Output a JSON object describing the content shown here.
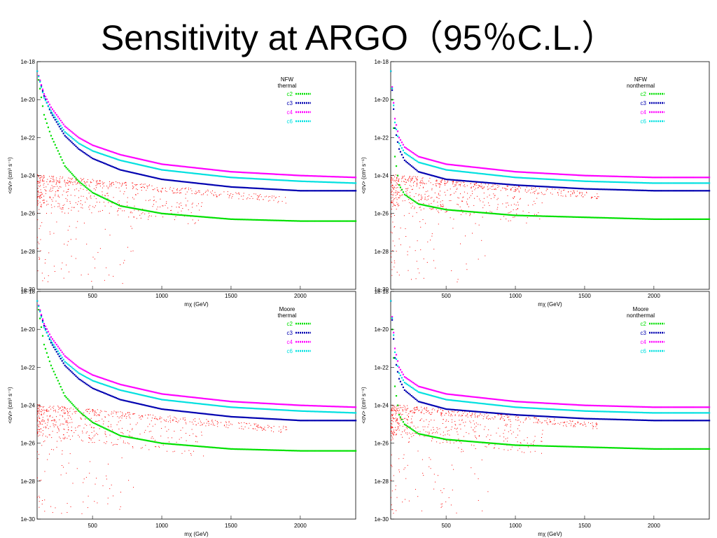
{
  "slide": {
    "title": "Sensitivity at ARGO（95％C.L.）"
  },
  "colors": {
    "c2": "#00e000",
    "c3": "#0000b0",
    "c4": "#ff00ff",
    "c6": "#00e0e0",
    "points": "#ff0000"
  },
  "chart_data": [
    {
      "id": "nfw-thermal",
      "type": "scatter",
      "title": "",
      "legend_header": [
        "NFW",
        "thermal"
      ],
      "legend_position": "top-right",
      "xlabel": "mχ (GeV)",
      "ylabel": "<σv> (cm³ s⁻¹)",
      "xlim": [
        100,
        2400
      ],
      "ylim": [
        -30,
        -18
      ],
      "yscale": "log",
      "x_ticks": [
        "500",
        "1000",
        "1500",
        "2000"
      ],
      "y_ticks": [
        "1e-18",
        "1e-20",
        "1e-22",
        "1e-24",
        "1e-26",
        "1e-28",
        "1e-30"
      ],
      "grid": false,
      "series": [
        {
          "name": "c2",
          "x": [
            100,
            150,
            200,
            300,
            400,
            500,
            700,
            1000,
            1500,
            2000,
            2400
          ],
          "log_y": [
            -18.5,
            -20.8,
            -21.9,
            -23.5,
            -24.3,
            -24.9,
            -25.6,
            -26.0,
            -26.3,
            -26.4,
            -26.4
          ]
        },
        {
          "name": "c3",
          "x": [
            100,
            150,
            200,
            300,
            400,
            500,
            700,
            1000,
            1500,
            2000,
            2400
          ],
          "log_y": [
            -18.5,
            -19.8,
            -20.7,
            -21.9,
            -22.6,
            -23.1,
            -23.7,
            -24.2,
            -24.6,
            -24.8,
            -24.8
          ]
        },
        {
          "name": "c4",
          "x": [
            100,
            150,
            200,
            300,
            400,
            500,
            700,
            1000,
            1500,
            2000,
            2400
          ],
          "log_y": [
            -18.5,
            -19.7,
            -20.4,
            -21.4,
            -22.0,
            -22.4,
            -22.9,
            -23.4,
            -23.8,
            -24.0,
            -24.1
          ]
        },
        {
          "name": "c6",
          "x": [
            100,
            150,
            200,
            300,
            400,
            500,
            700,
            1000,
            1500,
            2000,
            2400
          ],
          "log_y": [
            -18.5,
            -19.9,
            -20.6,
            -21.7,
            -22.3,
            -22.7,
            -23.2,
            -23.7,
            -24.1,
            -24.3,
            -24.4
          ]
        }
      ]
    },
    {
      "id": "nfw-nonthermal",
      "type": "scatter",
      "title": "",
      "legend_header": [
        "NFW",
        "nonthermal"
      ],
      "legend_position": "top-right",
      "xlabel": "mχ (GeV)",
      "ylabel": "<σv> (cm³ s⁻¹)",
      "xlim": [
        100,
        2400
      ],
      "ylim": [
        -30,
        -18
      ],
      "yscale": "log",
      "x_ticks": [
        "500",
        "1000",
        "1500",
        "2000"
      ],
      "y_ticks": [
        "1e-18",
        "1e-20",
        "1e-22",
        "1e-24",
        "1e-26",
        "1e-28",
        "1e-30"
      ],
      "grid": false,
      "series": [
        {
          "name": "c2",
          "x": [
            100,
            130,
            160,
            200,
            300,
            500,
            1000,
            1500,
            2000,
            2400
          ],
          "log_y": [
            -18.5,
            -23.0,
            -24.5,
            -25.0,
            -25.5,
            -25.8,
            -26.1,
            -26.2,
            -26.3,
            -26.3
          ]
        },
        {
          "name": "c3",
          "x": [
            100,
            130,
            160,
            200,
            300,
            500,
            1000,
            1500,
            2000,
            2400
          ],
          "log_y": [
            -18.5,
            -21.5,
            -22.6,
            -23.2,
            -23.8,
            -24.2,
            -24.5,
            -24.7,
            -24.8,
            -24.8
          ]
        },
        {
          "name": "c4",
          "x": [
            100,
            130,
            160,
            200,
            300,
            500,
            1000,
            1500,
            2000,
            2400
          ],
          "log_y": [
            -18.5,
            -21.0,
            -22.0,
            -22.5,
            -23.0,
            -23.4,
            -23.8,
            -24.0,
            -24.1,
            -24.1
          ]
        },
        {
          "name": "c6",
          "x": [
            100,
            130,
            160,
            200,
            300,
            500,
            1000,
            1500,
            2000,
            2400
          ],
          "log_y": [
            -18.5,
            -21.2,
            -22.3,
            -22.8,
            -23.3,
            -23.7,
            -24.1,
            -24.3,
            -24.4,
            -24.4
          ]
        }
      ]
    },
    {
      "id": "moore-thermal",
      "type": "scatter",
      "title": "",
      "legend_header": [
        "Moore",
        "thermal"
      ],
      "legend_position": "top-right",
      "xlabel": "mχ (GeV)",
      "ylabel": "<σv> (cm³ s⁻¹)",
      "xlim": [
        100,
        2400
      ],
      "ylim": [
        -30,
        -18
      ],
      "yscale": "log",
      "x_ticks": [
        "500",
        "1000",
        "1500",
        "2000"
      ],
      "y_ticks": [
        "1e-18",
        "1e-20",
        "1e-22",
        "1e-24",
        "1e-26",
        "1e-28",
        "1e-30"
      ],
      "grid": false,
      "series": [
        {
          "name": "c2",
          "x": [
            100,
            150,
            200,
            300,
            400,
            500,
            700,
            1000,
            1500,
            2000,
            2400
          ],
          "log_y": [
            -18.5,
            -20.8,
            -21.9,
            -23.5,
            -24.3,
            -24.9,
            -25.6,
            -26.0,
            -26.3,
            -26.4,
            -26.4
          ]
        },
        {
          "name": "c3",
          "x": [
            100,
            150,
            200,
            300,
            400,
            500,
            700,
            1000,
            1500,
            2000,
            2400
          ],
          "log_y": [
            -18.5,
            -19.8,
            -20.7,
            -21.9,
            -22.6,
            -23.1,
            -23.7,
            -24.2,
            -24.6,
            -24.8,
            -24.8
          ]
        },
        {
          "name": "c4",
          "x": [
            100,
            150,
            200,
            300,
            400,
            500,
            700,
            1000,
            1500,
            2000,
            2400
          ],
          "log_y": [
            -18.5,
            -19.7,
            -20.4,
            -21.4,
            -22.0,
            -22.4,
            -22.9,
            -23.4,
            -23.8,
            -24.0,
            -24.1
          ]
        },
        {
          "name": "c6",
          "x": [
            100,
            150,
            200,
            300,
            400,
            500,
            700,
            1000,
            1500,
            2000,
            2400
          ],
          "log_y": [
            -18.5,
            -19.9,
            -20.6,
            -21.7,
            -22.3,
            -22.7,
            -23.2,
            -23.7,
            -24.1,
            -24.3,
            -24.4
          ]
        }
      ]
    },
    {
      "id": "moore-nonthermal",
      "type": "scatter",
      "title": "",
      "legend_header": [
        "Moore",
        "nonthermal"
      ],
      "legend_position": "top-right",
      "xlabel": "mχ (GeV)",
      "ylabel": "<σv> (cm³ s⁻¹)",
      "xlim": [
        100,
        2400
      ],
      "ylim": [
        -30,
        -18
      ],
      "yscale": "log",
      "x_ticks": [
        "500",
        "1000",
        "1500",
        "2000"
      ],
      "y_ticks": [
        "1e-18",
        "1e-20",
        "1e-22",
        "1e-24",
        "1e-26",
        "1e-28",
        "1e-30"
      ],
      "grid": false,
      "series": [
        {
          "name": "c2",
          "x": [
            100,
            130,
            160,
            200,
            300,
            500,
            1000,
            1500,
            2000,
            2400
          ],
          "log_y": [
            -18.5,
            -23.0,
            -24.5,
            -25.0,
            -25.5,
            -25.8,
            -26.1,
            -26.2,
            -26.3,
            -26.3
          ]
        },
        {
          "name": "c3",
          "x": [
            100,
            130,
            160,
            200,
            300,
            500,
            1000,
            1500,
            2000,
            2400
          ],
          "log_y": [
            -18.5,
            -21.5,
            -22.6,
            -23.2,
            -23.8,
            -24.2,
            -24.5,
            -24.7,
            -24.8,
            -24.8
          ]
        },
        {
          "name": "c4",
          "x": [
            100,
            130,
            160,
            200,
            300,
            500,
            1000,
            1500,
            2000,
            2400
          ],
          "log_y": [
            -18.5,
            -21.0,
            -22.0,
            -22.5,
            -23.0,
            -23.4,
            -23.8,
            -24.0,
            -24.1,
            -24.1
          ]
        },
        {
          "name": "c6",
          "x": [
            100,
            130,
            160,
            200,
            300,
            500,
            1000,
            1500,
            2000,
            2400
          ],
          "log_y": [
            -18.5,
            -21.2,
            -22.3,
            -22.8,
            -23.3,
            -23.7,
            -24.1,
            -24.3,
            -24.4,
            -24.4
          ]
        }
      ]
    }
  ]
}
